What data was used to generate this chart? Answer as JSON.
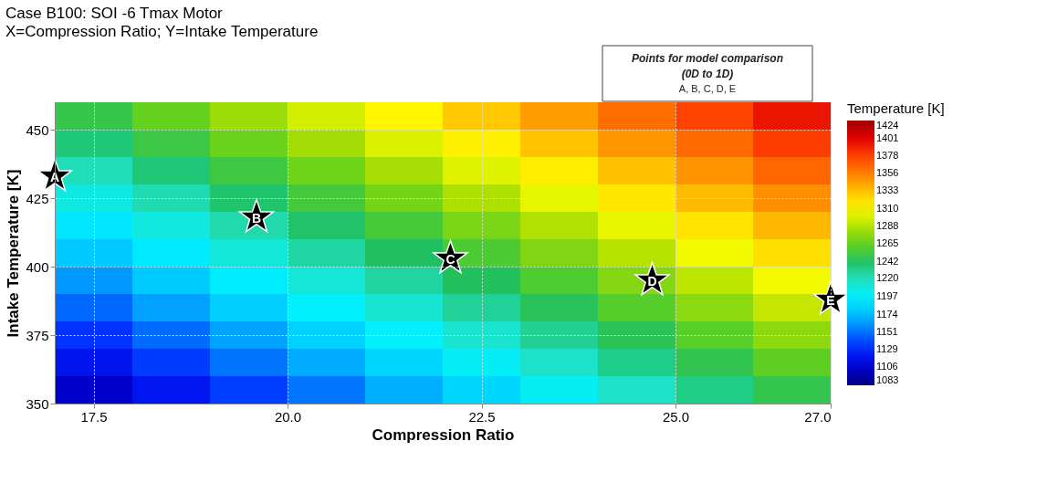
{
  "chart_data": {
    "type": "heatmap",
    "title": "Case B100: SOI -6 Tmax Motor",
    "subtitle": "X=Compression Ratio; Y=Intake Temperature",
    "xlabel": "Compression Ratio",
    "ylabel": "Intake Temperature [K]",
    "clabel": "Temperature [K]",
    "x": [
      17.5,
      18.5,
      19.5,
      20.5,
      21.5,
      22.5,
      23.5,
      24.5,
      25.5,
      26.5
    ],
    "cells": [
      [
        1250,
        1266,
        1282,
        1298,
        1314,
        1330,
        1346,
        1362,
        1378,
        1394
      ],
      [
        1236,
        1252,
        1268,
        1284,
        1300,
        1316,
        1332,
        1348,
        1364,
        1380
      ],
      [
        1221,
        1237,
        1253,
        1269,
        1285,
        1301,
        1317,
        1333,
        1349,
        1365
      ],
      [
        1207,
        1223,
        1239,
        1255,
        1271,
        1287,
        1303,
        1319,
        1335,
        1351
      ],
      [
        1192,
        1208,
        1224,
        1240,
        1256,
        1272,
        1288,
        1304,
        1320,
        1336
      ],
      [
        1178,
        1194,
        1210,
        1226,
        1242,
        1258,
        1274,
        1290,
        1306,
        1322
      ],
      [
        1163,
        1179,
        1195,
        1211,
        1227,
        1243,
        1259,
        1275,
        1291,
        1307
      ],
      [
        1149,
        1165,
        1181,
        1197,
        1213,
        1229,
        1245,
        1261,
        1277,
        1293
      ],
      [
        1134,
        1150,
        1166,
        1182,
        1198,
        1214,
        1230,
        1246,
        1262,
        1278
      ],
      [
        1120,
        1136,
        1152,
        1168,
        1184,
        1200,
        1216,
        1232,
        1248,
        1264
      ],
      [
        1105,
        1121,
        1137,
        1153,
        1169,
        1185,
        1201,
        1217,
        1233,
        1249
      ]
    ],
    "clim": [
      1083,
      1424
    ],
    "cticks": [
      1083,
      1106,
      1129,
      1151,
      1174,
      1197,
      1220,
      1242,
      1265,
      1288,
      1310,
      1333,
      1356,
      1378,
      1401,
      1424
    ],
    "xlim": [
      17,
      27
    ],
    "xticks": [
      {
        "value": 17.5,
        "label": "17.5"
      },
      {
        "value": 20,
        "label": "20.0"
      },
      {
        "value": 22.5,
        "label": "22.5"
      },
      {
        "value": 25,
        "label": "25.0"
      },
      {
        "value": 27,
        "label": "27.0"
      }
    ],
    "ylim": [
      350,
      460
    ],
    "yticks": [
      350,
      375,
      400,
      425,
      450
    ],
    "grid": true,
    "series": [
      {
        "type": "scatter",
        "color": "#000000",
        "marker": "star",
        "x": [
          17,
          19.6,
          22.1,
          24.7,
          27
        ],
        "values": [
          433,
          418,
          403,
          395,
          388
        ],
        "value_labels": [
          "A",
          "B",
          "C",
          "D",
          "E"
        ]
      }
    ],
    "annotations": [
      "Points for model comparison",
      "(0D to 1D)",
      "A, B, C, D, E"
    ]
  }
}
